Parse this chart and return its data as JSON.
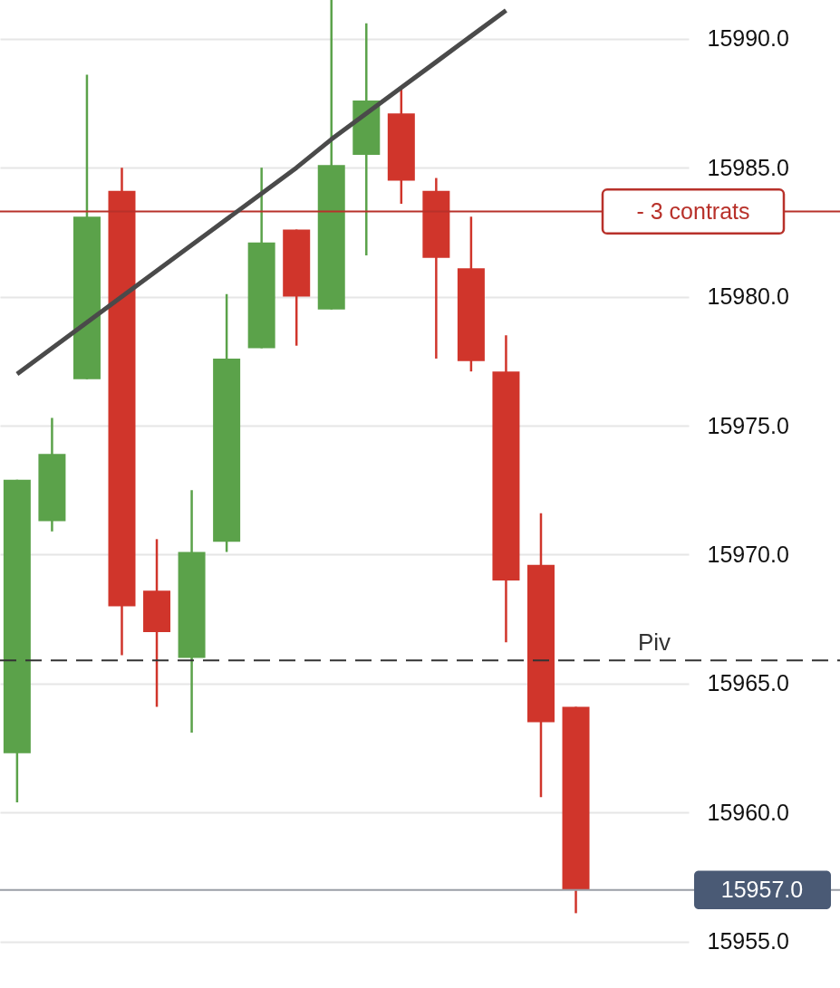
{
  "chart_data": {
    "type": "candlestick",
    "categories": [
      null,
      null,
      null,
      null,
      null,
      null,
      null,
      null,
      null,
      null,
      null,
      null,
      null,
      null,
      null,
      null,
      null
    ],
    "ohlc": [
      [
        15962.3,
        15972.9,
        15960.4,
        15972.9
      ],
      [
        15971.3,
        15975.3,
        15970.9,
        15973.9
      ],
      [
        15976.8,
        15988.6,
        15976.8,
        15983.1
      ],
      [
        15984.1,
        15985.0,
        15966.1,
        15968.0
      ],
      [
        15968.6,
        15970.6,
        15964.1,
        15967.0
      ],
      [
        15966.0,
        15972.5,
        15963.1,
        15970.1
      ],
      [
        15970.5,
        15980.1,
        15970.1,
        15977.6
      ],
      [
        15978.0,
        15985.0,
        15978.0,
        15982.1
      ],
      [
        15982.6,
        15982.6,
        15978.1,
        15980.0
      ],
      [
        15979.5,
        15991.5,
        15979.5,
        15985.1
      ],
      [
        15985.5,
        15990.6,
        15981.6,
        15987.6
      ],
      [
        15987.1,
        15988.1,
        15983.6,
        15984.5
      ],
      [
        15984.1,
        15984.6,
        15977.6,
        15981.5
      ],
      [
        15981.1,
        15983.1,
        15977.1,
        15977.5
      ],
      [
        15977.1,
        15978.5,
        15966.6,
        15969.0
      ],
      [
        15969.6,
        15971.6,
        15960.6,
        15963.5
      ],
      [
        15964.1,
        15964.1,
        15956.1,
        15957.0
      ]
    ],
    "colors": [
      "#5ba24a",
      "#5ba24a",
      "#5ba24a",
      "#d0352b",
      "#d0352b",
      "#5ba24a",
      "#5ba24a",
      "#5ba24a",
      "#d0352b",
      "#5ba24a",
      "#5ba24a",
      "#d0352b",
      "#d0352b",
      "#d0352b",
      "#d0352b",
      "#d0352b",
      "#d0352b"
    ],
    "series": [
      {
        "type": "line",
        "color": "#4a4a4a",
        "values": [
          15977.0,
          15978.0,
          15979.0,
          15980.0,
          15981.0,
          15982.0,
          15983.0,
          15984.0,
          15985.0,
          15986.1,
          15987.1,
          15988.1,
          15989.1,
          15990.1,
          15991.1,
          null,
          null
        ]
      }
    ],
    "ylim": [
      15953.2,
      15991.5
    ],
    "yticks": [
      {
        "value": 15955,
        "label": "15955.0"
      },
      {
        "value": 15960,
        "label": "15960.0"
      },
      {
        "value": 15965,
        "label": "15965.0"
      },
      {
        "value": 15970,
        "label": "15970.0"
      },
      {
        "value": 15975,
        "label": "15975.0"
      },
      {
        "value": 15980,
        "label": "15980.0"
      },
      {
        "value": 15985,
        "label": "15985.0"
      },
      {
        "value": 15990,
        "label": "15990.0"
      }
    ],
    "ref_lines": [
      {
        "axis": "y",
        "value": 15983.3,
        "label": "- 3 contrats",
        "color": "#b8312a",
        "line_style": "solid"
      },
      {
        "axis": "y",
        "value": 15965.9,
        "label": "Piv",
        "color": "#333333",
        "line_style": "dashed"
      },
      {
        "axis": "y",
        "value": 15957.0,
        "label": "15957.0",
        "color": "#9a9ea6",
        "line_style": "solid"
      }
    ],
    "grid": "y",
    "tick_labels": "y"
  }
}
